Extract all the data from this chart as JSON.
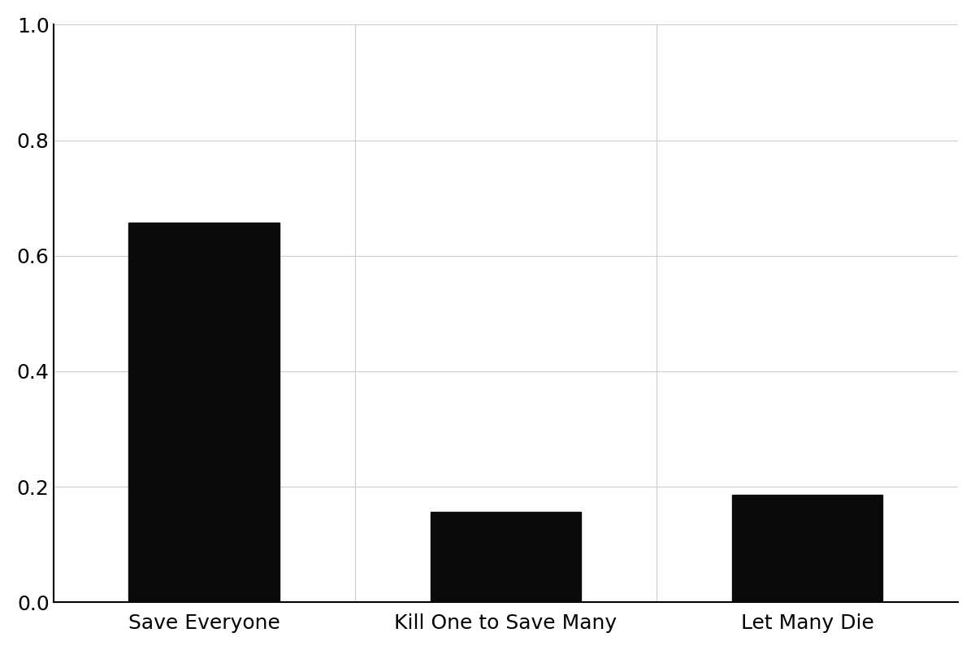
{
  "categories": [
    "Save Everyone",
    "Kill One to Save Many",
    "Let Many Die"
  ],
  "values": [
    0.657,
    0.157,
    0.186
  ],
  "bar_color": "#0a0a0a",
  "ylim": [
    0.0,
    1.0
  ],
  "yticks": [
    0.0,
    0.2,
    0.4,
    0.6,
    0.8,
    1.0
  ],
  "background_color": "#ffffff",
  "grid_color": "#cccccc",
  "bar_width": 0.5,
  "tick_labelsize": 18,
  "spine_linewidth": 1.5,
  "vline_positions": [
    0.5,
    1.5
  ],
  "xlim": [
    -0.5,
    2.5
  ]
}
